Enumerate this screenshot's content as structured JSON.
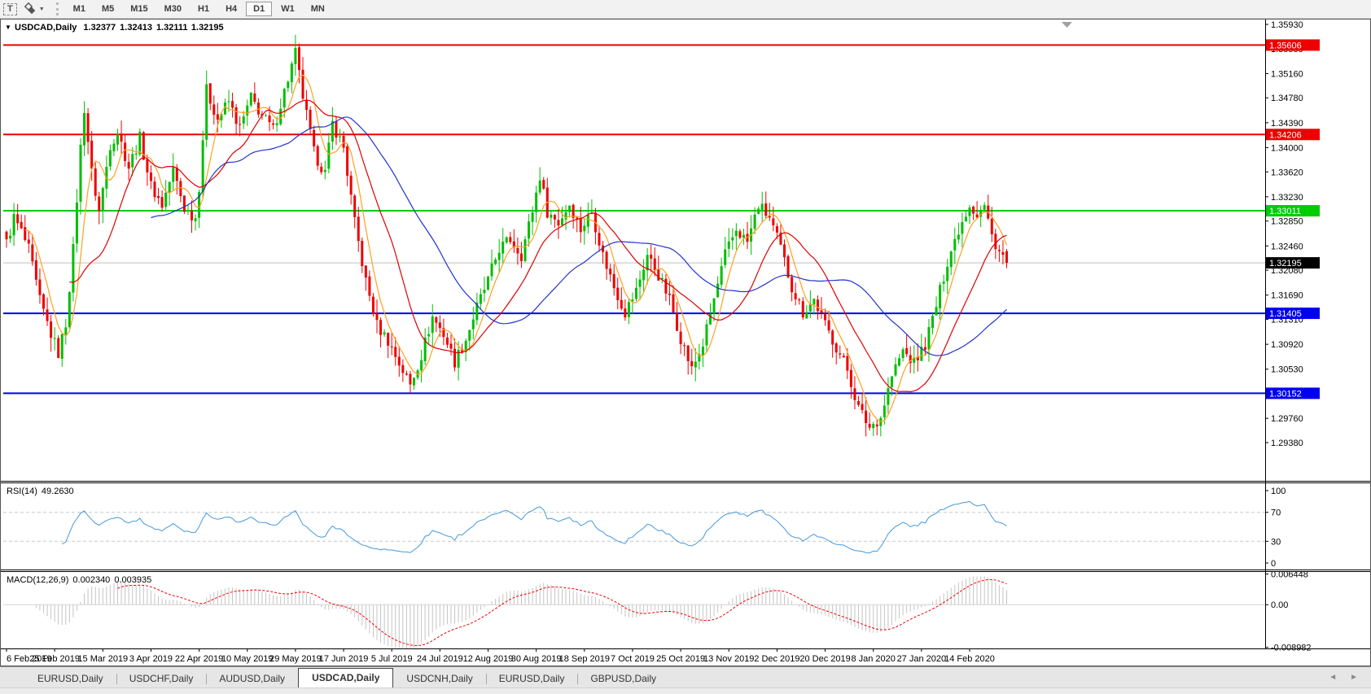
{
  "toolbar": {
    "text_tool_label": "T",
    "dropdown_caret": "▼",
    "timeframes": [
      "M1",
      "M5",
      "M15",
      "M30",
      "H1",
      "H4",
      "D1",
      "W1",
      "MN"
    ],
    "active_timeframe": "D1"
  },
  "chart_header": {
    "collapse_icon": "▼",
    "symbol_label": "USDCAD,Daily",
    "open": "1.32377",
    "high": "1.32413",
    "low": "1.32111",
    "close": "1.32195"
  },
  "rsi_header": {
    "label": "RSI(14)",
    "value": "49.2630"
  },
  "macd_header": {
    "label": "MACD(12,26,9)",
    "main": "0.002340",
    "signal": "0.003935"
  },
  "tabs": {
    "items": [
      "EURUSD,Daily",
      "USDCHF,Daily",
      "AUDUSD,Daily",
      "USDCAD,Daily",
      "USDCNH,Daily",
      "EURUSD,Daily",
      "GBPUSD,Daily"
    ],
    "active": "USDCAD,Daily",
    "scroll_left_icon": "◄",
    "scroll_right_icon": "►"
  },
  "chart_data": {
    "type": "candlestick",
    "symbol": "USDCAD",
    "period": "Daily",
    "last_ohlc": {
      "open": 1.32377,
      "high": 1.32413,
      "low": 1.32111,
      "close": 1.32195
    },
    "price_domain": [
      1.28781,
      1.36019
    ],
    "price_axis_ticks": [
      1.3593,
      1.3555,
      1.3516,
      1.3478,
      1.3439,
      1.34,
      1.3362,
      1.3323,
      1.3285,
      1.3246,
      1.3208,
      1.3169,
      1.3131,
      1.3092,
      1.3053,
      1.3014,
      1.2976,
      1.2938
    ],
    "horizontal_lines": [
      {
        "price": 1.35606,
        "color": "#ee0000"
      },
      {
        "price": 1.34206,
        "color": "#ee0000"
      },
      {
        "price": 1.33011,
        "color": "#00cc00"
      },
      {
        "price": 1.31405,
        "color": "#0000f0"
      },
      {
        "price": 1.30152,
        "color": "#0000f0"
      }
    ],
    "current_price": {
      "value": 1.32195,
      "line_color": "#c0c0c0",
      "label_bg": "#000000"
    },
    "date_labels": [
      "6 Feb 2019",
      "25 Feb 2019",
      "15 Mar 2019",
      "3 Apr 2019",
      "22 Apr 2019",
      "10 May 2019",
      "29 May 2019",
      "17 Jun 2019",
      "5 Jul 2019",
      "24 Jul 2019",
      "12 Aug 2019",
      "30 Aug 2019",
      "18 Sep 2019",
      "7 Oct 2019",
      "25 Oct 2019",
      "13 Nov 2019",
      "2 Dec 2019",
      "20 Dec 2019",
      "8 Jan 2020",
      "27 Jan 2020",
      "14 Feb 2020"
    ],
    "candles_per_label": 13,
    "candle_count": 271,
    "bull_color": "#00be00",
    "bear_color": "#ee0000",
    "close_anchors": [
      [
        0,
        1.325
      ],
      [
        2,
        1.329
      ],
      [
        4,
        1.3268
      ],
      [
        6,
        1.324
      ],
      [
        9,
        1.316
      ],
      [
        12,
        1.3108
      ],
      [
        14,
        1.3078
      ],
      [
        16,
        1.3125
      ],
      [
        18,
        1.324
      ],
      [
        20,
        1.34
      ],
      [
        21,
        1.3462
      ],
      [
        23,
        1.336
      ],
      [
        25,
        1.33
      ],
      [
        28,
        1.3405
      ],
      [
        30,
        1.3425
      ],
      [
        33,
        1.337
      ],
      [
        36,
        1.3415
      ],
      [
        39,
        1.334
      ],
      [
        42,
        1.331
      ],
      [
        45,
        1.3365
      ],
      [
        48,
        1.3305
      ],
      [
        51,
        1.329
      ],
      [
        52,
        1.334
      ],
      [
        54,
        1.349
      ],
      [
        57,
        1.3445
      ],
      [
        60,
        1.3472
      ],
      [
        63,
        1.343
      ],
      [
        66,
        1.3478
      ],
      [
        69,
        1.345
      ],
      [
        72,
        1.3428
      ],
      [
        75,
        1.3488
      ],
      [
        78,
        1.3548
      ],
      [
        80,
        1.348
      ],
      [
        83,
        1.3392
      ],
      [
        86,
        1.336
      ],
      [
        88,
        1.3438
      ],
      [
        91,
        1.34
      ],
      [
        94,
        1.3282
      ],
      [
        97,
        1.319
      ],
      [
        100,
        1.3122
      ],
      [
        103,
        1.3098
      ],
      [
        106,
        1.3062
      ],
      [
        109,
        1.3028
      ],
      [
        112,
        1.3075
      ],
      [
        115,
        1.3135
      ],
      [
        118,
        1.3108
      ],
      [
        121,
        1.3065
      ],
      [
        124,
        1.31
      ],
      [
        127,
        1.315
      ],
      [
        130,
        1.3192
      ],
      [
        133,
        1.3242
      ],
      [
        136,
        1.3256
      ],
      [
        139,
        1.3232
      ],
      [
        142,
        1.3302
      ],
      [
        144,
        1.3356
      ],
      [
        146,
        1.33
      ],
      [
        149,
        1.3282
      ],
      [
        152,
        1.3312
      ],
      [
        155,
        1.3272
      ],
      [
        158,
        1.33
      ],
      [
        161,
        1.3232
      ],
      [
        164,
        1.3182
      ],
      [
        167,
        1.3142
      ],
      [
        170,
        1.3176
      ],
      [
        173,
        1.3232
      ],
      [
        176,
        1.32
      ],
      [
        179,
        1.3162
      ],
      [
        182,
        1.3102
      ],
      [
        185,
        1.3052
      ],
      [
        188,
        1.3092
      ],
      [
        191,
        1.3162
      ],
      [
        194,
        1.3232
      ],
      [
        197,
        1.3272
      ],
      [
        200,
        1.3252
      ],
      [
        203,
        1.331
      ],
      [
        206,
        1.329
      ],
      [
        209,
        1.3242
      ],
      [
        212,
        1.3182
      ],
      [
        215,
        1.3142
      ],
      [
        218,
        1.3162
      ],
      [
        221,
        1.3122
      ],
      [
        224,
        1.3088
      ],
      [
        227,
        1.3052
      ],
      [
        230,
        1.2992
      ],
      [
        233,
        1.2962
      ],
      [
        236,
        1.2978
      ],
      [
        239,
        1.3042
      ],
      [
        242,
        1.3082
      ],
      [
        245,
        1.3062
      ],
      [
        248,
        1.3092
      ],
      [
        251,
        1.3152
      ],
      [
        254,
        1.3222
      ],
      [
        257,
        1.3272
      ],
      [
        260,
        1.3312
      ],
      [
        262,
        1.3295
      ],
      [
        264,
        1.3308
      ],
      [
        266,
        1.3262
      ],
      [
        268,
        1.3238
      ],
      [
        270,
        1.32195
      ]
    ],
    "moving_averages": [
      {
        "period": 6,
        "color": "#ffa020"
      },
      {
        "period": 18,
        "color": "#dd0000"
      },
      {
        "period": 40,
        "color": "#2233cc"
      }
    ],
    "rsi": {
      "label": "RSI(14)",
      "period": 14,
      "current": 49.263,
      "color": "#4499dd",
      "levels": [
        70,
        30
      ],
      "domain": [
        0,
        100
      ],
      "ticks": [
        100,
        70,
        30,
        0
      ]
    },
    "macd": {
      "label": "MACD(12,26,9)",
      "fast": 12,
      "slow": 26,
      "signal_period": 9,
      "main_value": 0.00234,
      "signal_value": 0.003935,
      "hist_color": "#c4c4c4",
      "signal_color": "#ee0000",
      "domain": [
        -0.0092,
        0.00705
      ],
      "ticks": [
        {
          "v": 0.006448,
          "label": "0.006448"
        },
        {
          "v": 0,
          "label": "0.00"
        },
        {
          "v": -0.008982,
          "label": "-0.008982"
        }
      ]
    }
  }
}
